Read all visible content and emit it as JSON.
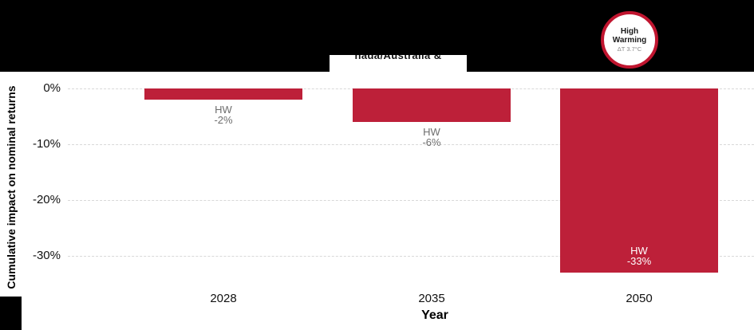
{
  "header": {
    "clipped_title_fragment": "nada/Australia &"
  },
  "badge": {
    "title": "High Warming",
    "subtitle": "ΔT 3.7°C"
  },
  "chart_data": {
    "type": "bar",
    "categories": [
      "2028",
      "2035",
      "2050"
    ],
    "series": [
      {
        "name": "HW",
        "values": [
          -2,
          -6,
          -33
        ]
      }
    ],
    "bar_labels": [
      [
        "HW",
        "-2%"
      ],
      [
        "HW",
        "-6%"
      ],
      [
        "HW",
        "-33%"
      ]
    ],
    "xlabel": "Year",
    "ylabel": "Cumulative impact on nominal returns",
    "y_ticks": [
      0,
      -10,
      -20,
      -30
    ],
    "y_tick_labels": [
      "0%",
      "-10%",
      "-20%",
      "-30%"
    ],
    "ylim": [
      -36,
      0
    ],
    "grid": "horizontal-dashed",
    "legend_position": "none",
    "colors": {
      "bar": "#BD2039",
      "inside_label": "#FFFFFF",
      "outside_label": "#6E6E6E",
      "grid": "#D8D8D8",
      "badge_ring": "#C0152F"
    }
  }
}
